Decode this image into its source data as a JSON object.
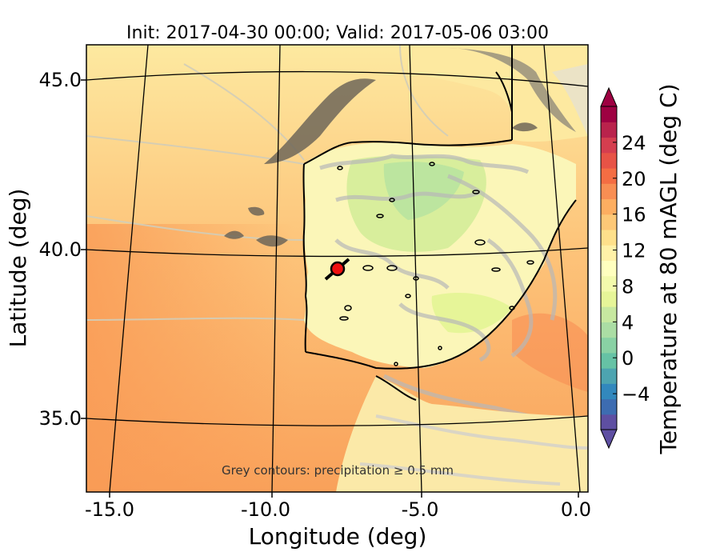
{
  "title": "Init: 2017-04-30 00:00; Valid: 2017-05-06 03:00",
  "xlabel": "Longitude (deg)",
  "ylabel": "Latitude (deg)",
  "x_ticks": [
    "-15.0",
    "-10.0",
    "-5.0",
    "0.0"
  ],
  "y_ticks": [
    "45.0",
    "40.0",
    "35.0"
  ],
  "colorbar": {
    "label": "Temperature at 80 mAGL (deg C)",
    "ticks": [
      "24",
      "20",
      "16",
      "12",
      "8",
      "4",
      "0",
      "−4"
    ],
    "range": [
      -8,
      28
    ],
    "colors": [
      "#5e4fa2",
      "#3d6cb1",
      "#3288bd",
      "#4da4b0",
      "#66c2a5",
      "#89d1a4",
      "#abdda4",
      "#c7e8a0",
      "#e6f598",
      "#f3faac",
      "#ffffbf",
      "#fff1a8",
      "#fee08b",
      "#fdc877",
      "#fdae61",
      "#f88e53",
      "#f46d43",
      "#e75346",
      "#d53e4f",
      "#b9234c",
      "#9e0142"
    ]
  },
  "note": "Grey contours: precipitation ≥ 0.5 mm",
  "chart_data": {
    "type": "heatmap",
    "title": "Init: 2017-04-30 00:00; Valid: 2017-05-06 03:00",
    "xlabel": "Longitude (deg)",
    "ylabel": "Latitude (deg)",
    "xlim": [
      -16,
      0.2
    ],
    "ylim": [
      32.8,
      46
    ],
    "x_ticks": [
      -15.0,
      -10.0,
      -5.0,
      0.0
    ],
    "y_ticks": [
      45.0,
      40.0,
      35.0
    ],
    "colorbar_range": [
      -8,
      28
    ],
    "marker": {
      "lon": -7.6,
      "lat": 39.3
    }
  }
}
